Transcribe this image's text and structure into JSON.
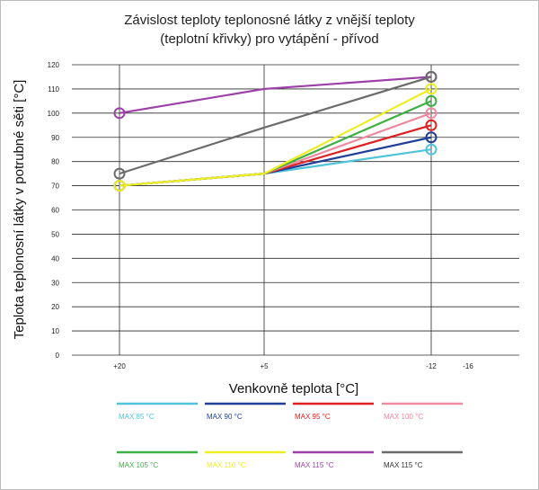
{
  "chart_data": {
    "type": "line",
    "title_line1": "Závislost teploty teplonosné látky z vnější teploty",
    "title_line2": "(teplotní křivky) pro vytápění - přívod",
    "xlabel": "Venkovně teplota [°C]",
    "ylabel": "Teplota teplonosní látky v potrubné sěti [°C]",
    "x_ticks": [
      "+20",
      "+5",
      "-12",
      "-16"
    ],
    "ylim": [
      0,
      120
    ],
    "y_ticks": [
      "0",
      "10",
      "20",
      "30",
      "40",
      "50",
      "60",
      "70",
      "80",
      "90",
      "100",
      "110",
      "120"
    ],
    "grid": true,
    "legend_position": "bottom",
    "x": [
      "+20",
      "+5",
      "-12"
    ],
    "series": [
      {
        "name": "MAX 85 °C",
        "color": "#4fc3d9",
        "values": [
          70,
          75,
          85
        ]
      },
      {
        "name": "MAX 90 °C",
        "color": "#1f3f99",
        "values": [
          70,
          75,
          90
        ]
      },
      {
        "name": "MAX 95 °C",
        "color": "#e02020",
        "values": [
          70,
          75,
          95
        ]
      },
      {
        "name": "MAX 100 °C",
        "color": "#f08aa0",
        "values": [
          70,
          75,
          100
        ]
      },
      {
        "name": "MAX 105 °C",
        "color": "#3cb043",
        "values": [
          70,
          75,
          105
        ]
      },
      {
        "name": "MAX 110 °C",
        "color": "#eeee22",
        "values": [
          70,
          75,
          110
        ]
      },
      {
        "name": "MAX 115 °C",
        "color": "#9c3fa8",
        "values": [
          100,
          110,
          115
        ]
      },
      {
        "name": "MAX 115 °C",
        "color": "#6b6b6b",
        "values": [
          75,
          94,
          115
        ]
      }
    ]
  }
}
